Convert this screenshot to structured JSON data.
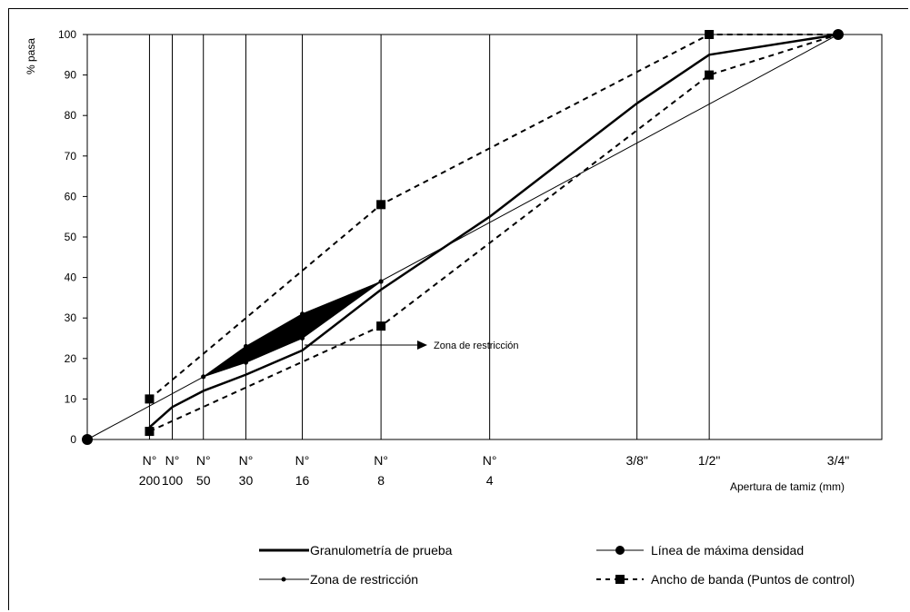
{
  "chart_data": {
    "type": "line",
    "title": "",
    "ylabel": "% pasa",
    "xlabel": "Apertura de tamiz (mm)",
    "ylim": [
      0,
      100
    ],
    "yticks": [
      0,
      10,
      20,
      30,
      40,
      50,
      60,
      70,
      80,
      90,
      100
    ],
    "grid": "vertical lines at each sieve",
    "x_scale": "0.45 power of sieve opening (mm)",
    "sieves": [
      {
        "label_line1": "",
        "label_line2": "",
        "mm": 0
      },
      {
        "label_line1": "N°",
        "label_line2": "200",
        "mm": 0.075
      },
      {
        "label_line1": "N°",
        "label_line2": "100",
        "mm": 0.15
      },
      {
        "label_line1": "N°",
        "label_line2": "50",
        "mm": 0.3
      },
      {
        "label_line1": "N°",
        "label_line2": "30",
        "mm": 0.6
      },
      {
        "label_line1": "N°",
        "label_line2": "16",
        "mm": 1.18
      },
      {
        "label_line1": "N°",
        "label_line2": "8",
        "mm": 2.36
      },
      {
        "label_line1": "N°",
        "label_line2": "4",
        "mm": 4.75
      },
      {
        "label_line1": "3/8\"",
        "label_line2": "",
        "mm": 9.5
      },
      {
        "label_line1": "1/2\"",
        "label_line2": "",
        "mm": 12.5
      },
      {
        "label_line1": "3/4\"",
        "label_line2": "",
        "mm": 19
      }
    ],
    "series": [
      {
        "name": "Granulometría de prueba",
        "style": "thick-solid",
        "points": [
          [
            0.075,
            3
          ],
          [
            0.15,
            8
          ],
          [
            0.3,
            12
          ],
          [
            0.6,
            16
          ],
          [
            1.18,
            22
          ],
          [
            2.36,
            37
          ],
          [
            4.75,
            55
          ],
          [
            9.5,
            83
          ],
          [
            12.5,
            95
          ],
          [
            19,
            100
          ]
        ]
      },
      {
        "name": "Línea de máxima densidad",
        "style": "thin-solid-dot",
        "points": [
          [
            0,
            0
          ],
          [
            19,
            100
          ]
        ]
      },
      {
        "name": "Zona de restricción",
        "style": "filled-zone",
        "upper": [
          [
            0.3,
            15.5
          ],
          [
            0.6,
            23
          ],
          [
            1.18,
            31
          ],
          [
            2.36,
            39
          ]
        ],
        "lower": [
          [
            0.3,
            15.5
          ],
          [
            0.6,
            19
          ],
          [
            1.18,
            25
          ],
          [
            2.36,
            39
          ]
        ]
      },
      {
        "name": "Ancho de banda (Puntos de control)",
        "style": "dashed-square",
        "upper": [
          [
            0.075,
            10
          ],
          [
            2.36,
            58
          ],
          [
            12.5,
            100
          ],
          [
            19,
            100
          ]
        ],
        "lower": [
          [
            0.075,
            2
          ],
          [
            2.36,
            28
          ],
          [
            12.5,
            90
          ],
          [
            19,
            100
          ]
        ]
      }
    ],
    "annotation": "Zona de restricción",
    "legend": [
      {
        "label": "Granulometría de prueba"
      },
      {
        "label": "Línea de máxima densidad"
      },
      {
        "label": "Zona de restricción"
      },
      {
        "label": "Ancho de banda (Puntos de control)"
      }
    ],
    "legend_position": "bottom"
  }
}
